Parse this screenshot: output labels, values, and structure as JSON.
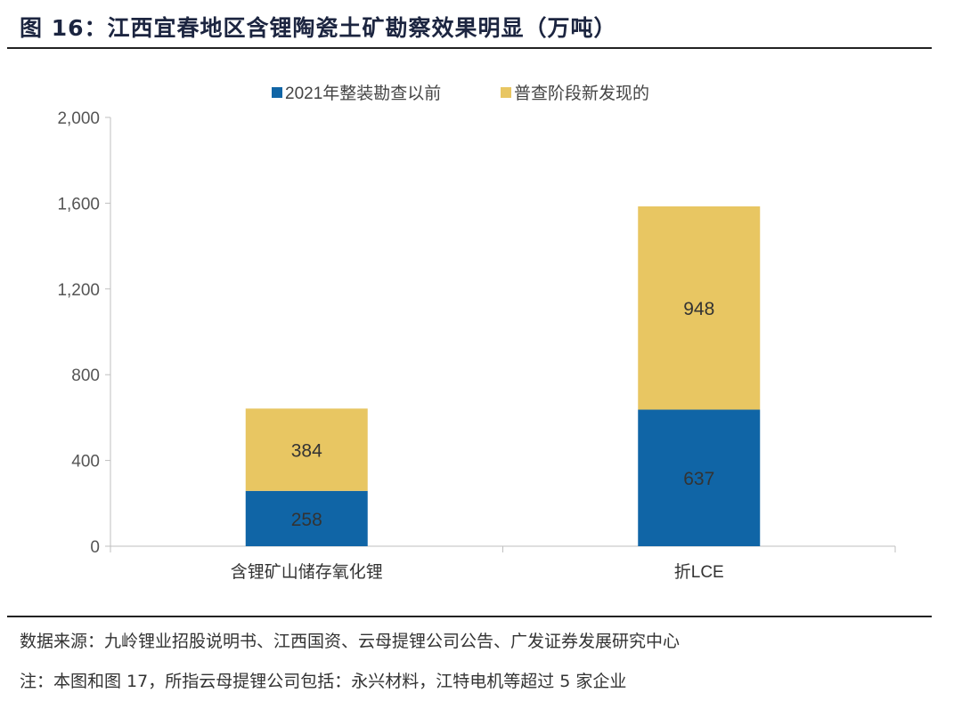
{
  "title": "图 16：江西宜春地区含锂陶瓷土矿勘察效果明显（万吨）",
  "source": "数据来源：九岭锂业招股说明书、江西国资、云母提锂公司公告、广发证券发展研究中心",
  "note": "注：本图和图 17，所指云母提锂公司包括：永兴材料，江特电机等超过 5 家企业",
  "chart_data": {
    "type": "bar",
    "stacked": true,
    "categories": [
      "含锂矿山储存氧化锂",
      "折LCE"
    ],
    "series": [
      {
        "name": "2021年整装勘查以前",
        "values": [
          258,
          637
        ],
        "color": "#1065a6"
      },
      {
        "name": "普查阶段新发现的",
        "values": [
          384,
          948
        ],
        "color": "#e8c662"
      }
    ],
    "ylim": [
      0,
      2000
    ],
    "yticks": [
      "0",
      "400",
      "800",
      "1,200",
      "1,600",
      "2,000"
    ],
    "ytick_values": [
      0,
      400,
      800,
      1200,
      1600,
      2000
    ],
    "grid": false,
    "legend": "top-center"
  }
}
